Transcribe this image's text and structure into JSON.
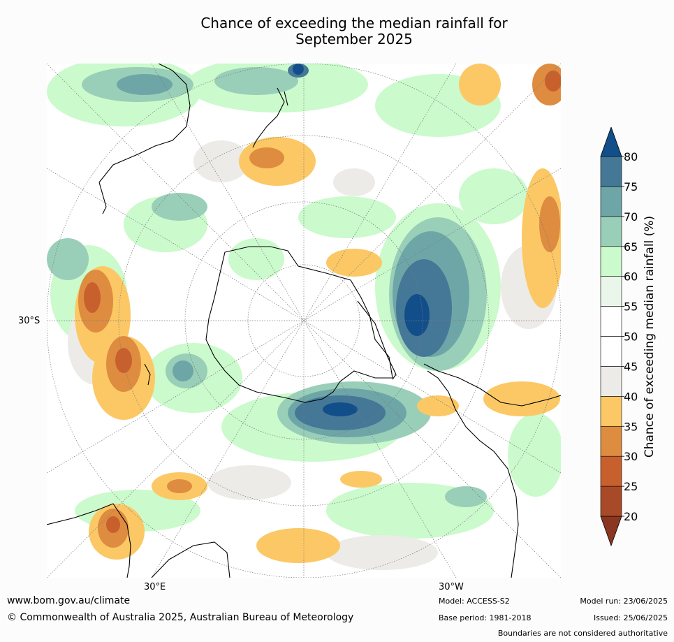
{
  "title": {
    "line1": "Chance of exceeding the median rainfall for",
    "line2": "September 2025"
  },
  "map": {
    "projection": "south-polar-stereographic",
    "lat_labels": [
      {
        "text": "30°S",
        "side": "left"
      },
      {
        "text": "30°E",
        "side": "bottom"
      },
      {
        "text": "30°W",
        "side": "bottom"
      }
    ]
  },
  "colorbar": {
    "label": "Chance of exceeding median rainfall (%)",
    "ticks": [
      "20",
      "25",
      "30",
      "35",
      "40",
      "45",
      "50",
      "55",
      "60",
      "65",
      "70",
      "75",
      "80"
    ],
    "colors": [
      "#a84a28",
      "#c8602e",
      "#de8c40",
      "#fcc865",
      "#edebe7",
      "#ffffff",
      "#ffffff",
      "#eaf6ea",
      "#cbfacc",
      "#99cfb8",
      "#6ea6a8",
      "#457897"
    ],
    "under_color": "#8b3620",
    "over_color": "#124f8a"
  },
  "footer": {
    "website": "www.bom.gov.au/climate",
    "copyright": "© Commonwealth of Australia 2025, Australian Bureau of Meteorology",
    "model": "Model: ACCESS-S2",
    "base_period": "Base period: 1981-2018",
    "model_run": "Model run: 23/06/2025",
    "issued": "Issued: 25/06/2025",
    "boundaries": "Boundaries are not considered authoritative"
  }
}
